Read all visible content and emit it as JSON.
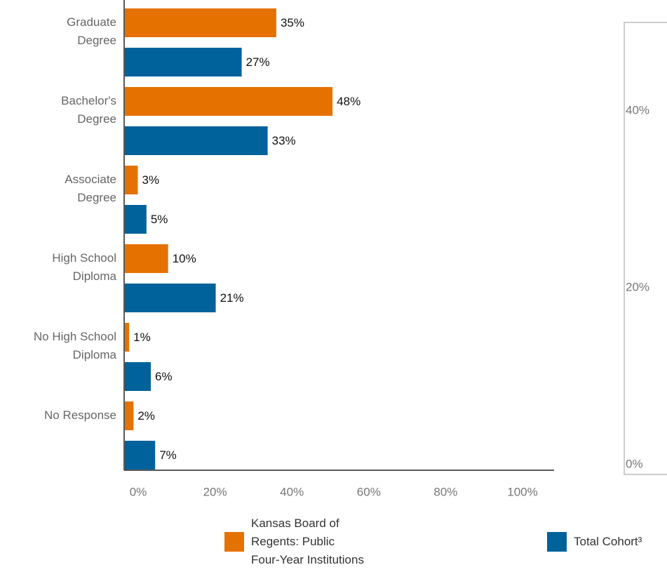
{
  "chart_data": [
    {
      "type": "barh",
      "categories": [
        "Graduate\nDegree",
        "Bachelor's\nDegree",
        "Associate\nDegree",
        "High School\nDiploma",
        "No High School\nDiploma",
        "No Response"
      ],
      "series": [
        {
          "name": "Kansas Board of\nRegents: Public\nFour-Year Institutions",
          "color": "#e57200",
          "values": [
            35,
            48,
            3,
            10,
            1,
            2
          ],
          "value_labels": [
            "35%",
            "48%",
            "3%",
            "10%",
            "1%",
            "2%"
          ]
        },
        {
          "name": "Total Cohort³",
          "color": "#00629b",
          "values": [
            27,
            33,
            5,
            21,
            6,
            7
          ],
          "value_labels": [
            "27%",
            "33%",
            "5%",
            "21%",
            "6%",
            "7%"
          ]
        }
      ],
      "xlim": [
        0,
        100
      ],
      "xticks": [
        {
          "value": 0,
          "label": "0%"
        },
        {
          "value": 20,
          "label": "20%"
        },
        {
          "value": 40,
          "label": "40%"
        },
        {
          "value": 60,
          "label": "60%"
        },
        {
          "value": 80,
          "label": "80%"
        },
        {
          "value": 100,
          "label": "100%"
        }
      ]
    },
    {
      "type": "bar",
      "ylim": [
        0,
        50
      ],
      "yticks": [
        {
          "value": 0,
          "label": "0%"
        },
        {
          "value": 20,
          "label": "20%"
        },
        {
          "value": 40,
          "label": "40%"
        }
      ]
    }
  ]
}
